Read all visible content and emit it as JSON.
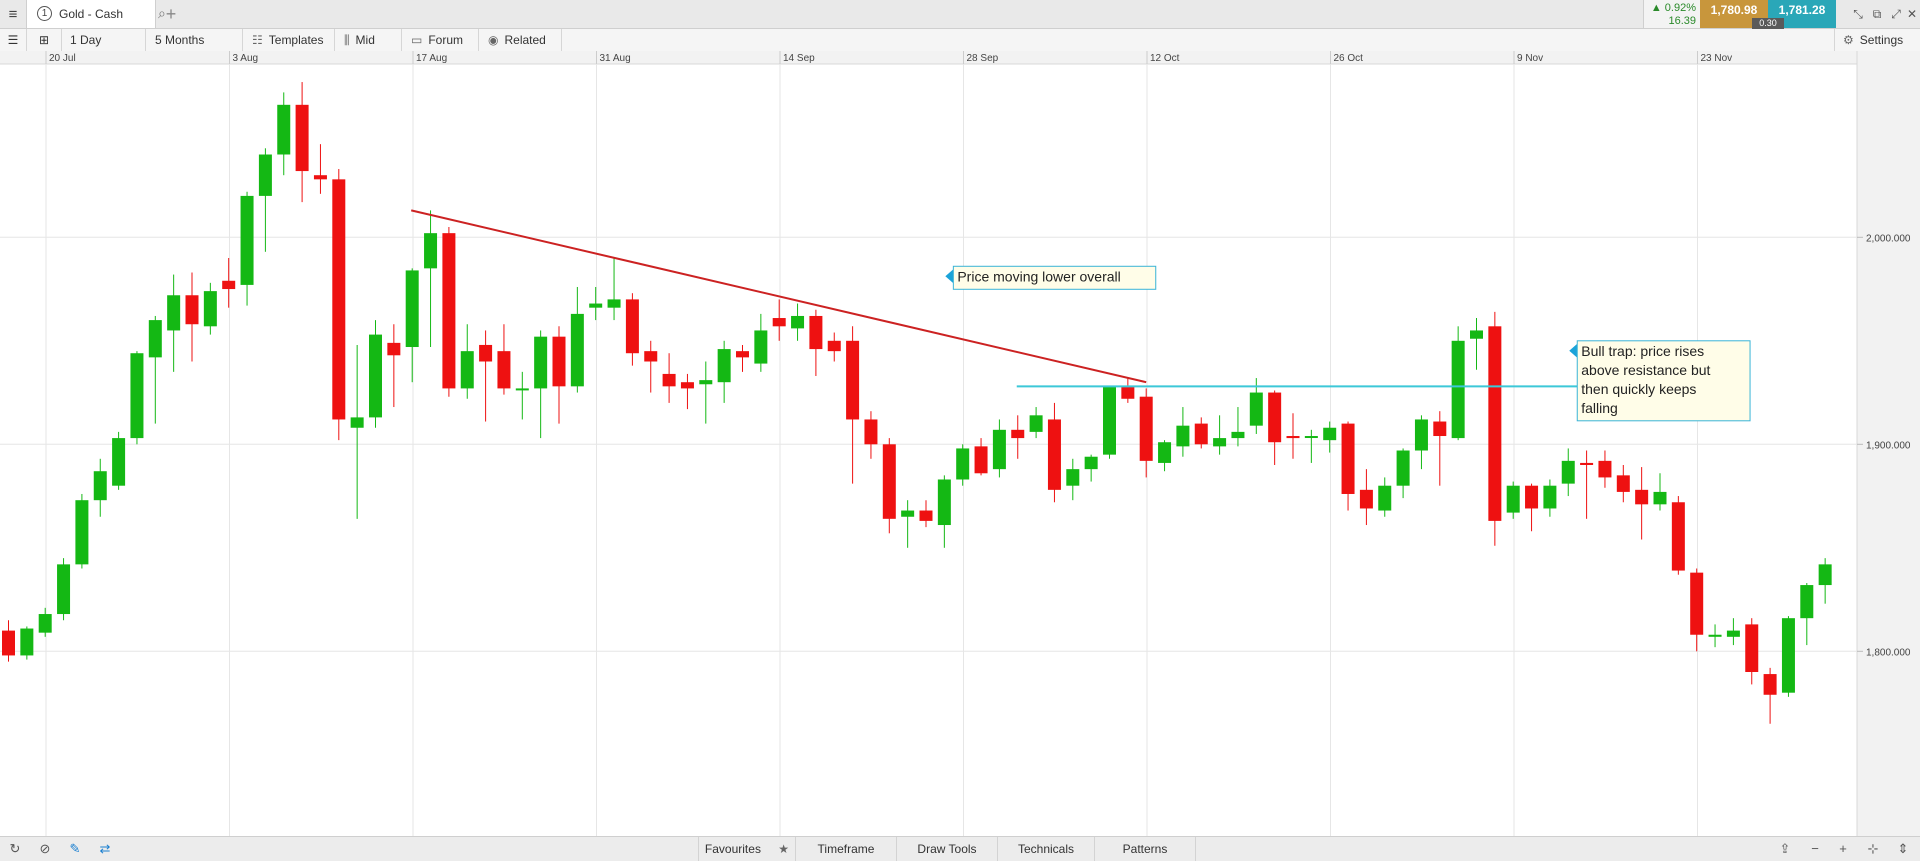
{
  "tabbar": {
    "menu_icon": "hamburger-icon",
    "tab_number": "1",
    "tab_title": "Gold - Cash",
    "search_icon": "search-icon",
    "add_tab": "+"
  },
  "quote": {
    "change_pct": "▲ 0.92%",
    "change_pts": "16.39",
    "sell_price": "1,780.98",
    "buy_price": "1,781.28",
    "spread": "0.30",
    "sell_color": "#c8963c",
    "buy_color": "#2aa7b8"
  },
  "window_controls": {
    "minimize": "⤡",
    "popout": "⧉",
    "maximize": "⤢",
    "close": "✕"
  },
  "toolbar": {
    "interval": "1 Day",
    "range": "5 Months",
    "templates": "Templates",
    "price_type": "Mid",
    "forum": "Forum",
    "related": "Related",
    "settings": "Settings"
  },
  "bottombar": {
    "favourites": "Favourites",
    "timeframe": "Timeframe",
    "draw_tools": "Draw Tools",
    "technicals": "Technicals",
    "patterns": "Patterns"
  },
  "chart_data": {
    "type": "candlestick",
    "instrument": "Gold - Cash",
    "interval": "1 Day",
    "x_tick_labels": [
      "20 Jul",
      "3 Aug",
      "17 Aug",
      "31 Aug",
      "14 Sep",
      "28 Sep",
      "12 Oct",
      "26 Oct",
      "9 Nov",
      "23 Nov"
    ],
    "y_tick_labels": [
      "2,000.000",
      "1,900.000",
      "1,800.000"
    ],
    "y_ticks": [
      2000,
      1900,
      1800
    ],
    "ylim": [
      1700,
      2090
    ],
    "grid": true,
    "up_color": "#14b814",
    "down_color": "#ee1111",
    "candles": [
      {
        "o": 1810,
        "h": 1815,
        "l": 1795,
        "c": 1798
      },
      {
        "o": 1798,
        "h": 1812,
        "l": 1796,
        "c": 1811
      },
      {
        "o": 1809,
        "h": 1821,
        "l": 1807,
        "c": 1818
      },
      {
        "o": 1818,
        "h": 1845,
        "l": 1815,
        "c": 1842
      },
      {
        "o": 1842,
        "h": 1876,
        "l": 1840,
        "c": 1873
      },
      {
        "o": 1873,
        "h": 1893,
        "l": 1865,
        "c": 1887
      },
      {
        "o": 1880,
        "h": 1906,
        "l": 1878,
        "c": 1903
      },
      {
        "o": 1903,
        "h": 1945,
        "l": 1900,
        "c": 1944
      },
      {
        "o": 1942,
        "h": 1962,
        "l": 1910,
        "c": 1960
      },
      {
        "o": 1955,
        "h": 1982,
        "l": 1935,
        "c": 1972
      },
      {
        "o": 1972,
        "h": 1983,
        "l": 1940,
        "c": 1958
      },
      {
        "o": 1957,
        "h": 1978,
        "l": 1953,
        "c": 1974
      },
      {
        "o": 1979,
        "h": 1990,
        "l": 1966,
        "c": 1975
      },
      {
        "o": 1977,
        "h": 2022,
        "l": 1967,
        "c": 2020
      },
      {
        "o": 2020,
        "h": 2043,
        "l": 1993,
        "c": 2040
      },
      {
        "o": 2040,
        "h": 2070,
        "l": 2030,
        "c": 2064
      },
      {
        "o": 2064,
        "h": 2075,
        "l": 2017,
        "c": 2032
      },
      {
        "o": 2030,
        "h": 2045,
        "l": 2021,
        "c": 2028
      },
      {
        "o": 2028,
        "h": 2033,
        "l": 1902,
        "c": 1912
      },
      {
        "o": 1908,
        "h": 1948,
        "l": 1864,
        "c": 1913
      },
      {
        "o": 1913,
        "h": 1960,
        "l": 1908,
        "c": 1953
      },
      {
        "o": 1949,
        "h": 1958,
        "l": 1918,
        "c": 1943
      },
      {
        "o": 1947,
        "h": 1985,
        "l": 1930,
        "c": 1984
      },
      {
        "o": 1985,
        "h": 2013,
        "l": 1947,
        "c": 2002
      },
      {
        "o": 2002,
        "h": 2005,
        "l": 1923,
        "c": 1927
      },
      {
        "o": 1927,
        "h": 1958,
        "l": 1922,
        "c": 1945
      },
      {
        "o": 1948,
        "h": 1955,
        "l": 1911,
        "c": 1940
      },
      {
        "o": 1945,
        "h": 1958,
        "l": 1924,
        "c": 1927
      },
      {
        "o": 1927,
        "h": 1935,
        "l": 1912,
        "c": 1927
      },
      {
        "o": 1927,
        "h": 1955,
        "l": 1903,
        "c": 1952
      },
      {
        "o": 1952,
        "h": 1957,
        "l": 1910,
        "c": 1928
      },
      {
        "o": 1928,
        "h": 1976,
        "l": 1925,
        "c": 1963
      },
      {
        "o": 1966,
        "h": 1976,
        "l": 1960,
        "c": 1968
      },
      {
        "o": 1966,
        "h": 1990,
        "l": 1960,
        "c": 1970
      },
      {
        "o": 1970,
        "h": 1973,
        "l": 1938,
        "c": 1944
      },
      {
        "o": 1945,
        "h": 1950,
        "l": 1925,
        "c": 1940
      },
      {
        "o": 1934,
        "h": 1944,
        "l": 1920,
        "c": 1928
      },
      {
        "o": 1930,
        "h": 1934,
        "l": 1917,
        "c": 1927
      },
      {
        "o": 1929,
        "h": 1940,
        "l": 1910,
        "c": 1931
      },
      {
        "o": 1930,
        "h": 1950,
        "l": 1920,
        "c": 1946
      },
      {
        "o": 1945,
        "h": 1948,
        "l": 1935,
        "c": 1942
      },
      {
        "o": 1939,
        "h": 1963,
        "l": 1935,
        "c": 1955
      },
      {
        "o": 1961,
        "h": 1970,
        "l": 1950,
        "c": 1957
      },
      {
        "o": 1956,
        "h": 1968,
        "l": 1950,
        "c": 1962
      },
      {
        "o": 1962,
        "h": 1965,
        "l": 1933,
        "c": 1946
      },
      {
        "o": 1950,
        "h": 1954,
        "l": 1940,
        "c": 1945
      },
      {
        "o": 1950,
        "h": 1957,
        "l": 1881,
        "c": 1912
      },
      {
        "o": 1912,
        "h": 1916,
        "l": 1893,
        "c": 1900
      },
      {
        "o": 1900,
        "h": 1903,
        "l": 1857,
        "c": 1864
      },
      {
        "o": 1865,
        "h": 1873,
        "l": 1850,
        "c": 1868
      },
      {
        "o": 1868,
        "h": 1873,
        "l": 1860,
        "c": 1863
      },
      {
        "o": 1861,
        "h": 1885,
        "l": 1850,
        "c": 1883
      },
      {
        "o": 1883,
        "h": 1900,
        "l": 1880,
        "c": 1898
      },
      {
        "o": 1899,
        "h": 1903,
        "l": 1885,
        "c": 1886
      },
      {
        "o": 1888,
        "h": 1912,
        "l": 1884,
        "c": 1907
      },
      {
        "o": 1907,
        "h": 1914,
        "l": 1893,
        "c": 1903
      },
      {
        "o": 1906,
        "h": 1918,
        "l": 1903,
        "c": 1914
      },
      {
        "o": 1912,
        "h": 1920,
        "l": 1872,
        "c": 1878
      },
      {
        "o": 1880,
        "h": 1893,
        "l": 1873,
        "c": 1888
      },
      {
        "o": 1888,
        "h": 1895,
        "l": 1882,
        "c": 1894
      },
      {
        "o": 1895,
        "h": 1928,
        "l": 1893,
        "c": 1928
      },
      {
        "o": 1928,
        "h": 1932,
        "l": 1920,
        "c": 1922
      },
      {
        "o": 1923,
        "h": 1927,
        "l": 1884,
        "c": 1892
      },
      {
        "o": 1891,
        "h": 1902,
        "l": 1887,
        "c": 1901
      },
      {
        "o": 1899,
        "h": 1918,
        "l": 1894,
        "c": 1909
      },
      {
        "o": 1910,
        "h": 1913,
        "l": 1898,
        "c": 1900
      },
      {
        "o": 1899,
        "h": 1914,
        "l": 1895,
        "c": 1903
      },
      {
        "o": 1903,
        "h": 1918,
        "l": 1899,
        "c": 1906
      },
      {
        "o": 1909,
        "h": 1932,
        "l": 1905,
        "c": 1925
      },
      {
        "o": 1925,
        "h": 1926,
        "l": 1890,
        "c": 1901
      },
      {
        "o": 1904,
        "h": 1915,
        "l": 1893,
        "c": 1903
      },
      {
        "o": 1904,
        "h": 1907,
        "l": 1891,
        "c": 1904
      },
      {
        "o": 1902,
        "h": 1911,
        "l": 1896,
        "c": 1908
      },
      {
        "o": 1910,
        "h": 1911,
        "l": 1868,
        "c": 1876
      },
      {
        "o": 1878,
        "h": 1888,
        "l": 1861,
        "c": 1869
      },
      {
        "o": 1868,
        "h": 1884,
        "l": 1865,
        "c": 1880
      },
      {
        "o": 1880,
        "h": 1898,
        "l": 1874,
        "c": 1897
      },
      {
        "o": 1897,
        "h": 1914,
        "l": 1888,
        "c": 1912
      },
      {
        "o": 1911,
        "h": 1916,
        "l": 1880,
        "c": 1904
      },
      {
        "o": 1903,
        "h": 1957,
        "l": 1902,
        "c": 1950
      },
      {
        "o": 1951,
        "h": 1961,
        "l": 1936,
        "c": 1955
      },
      {
        "o": 1957,
        "h": 1964,
        "l": 1851,
        "c": 1863
      },
      {
        "o": 1867,
        "h": 1882,
        "l": 1864,
        "c": 1880
      },
      {
        "o": 1880,
        "h": 1881,
        "l": 1858,
        "c": 1869
      },
      {
        "o": 1869,
        "h": 1883,
        "l": 1865,
        "c": 1880
      },
      {
        "o": 1881,
        "h": 1898,
        "l": 1875,
        "c": 1892
      },
      {
        "o": 1891,
        "h": 1897,
        "l": 1864,
        "c": 1890
      },
      {
        "o": 1892,
        "h": 1897,
        "l": 1879,
        "c": 1884
      },
      {
        "o": 1885,
        "h": 1890,
        "l": 1872,
        "c": 1877
      },
      {
        "o": 1878,
        "h": 1889,
        "l": 1854,
        "c": 1871
      },
      {
        "o": 1871,
        "h": 1886,
        "l": 1868,
        "c": 1877
      },
      {
        "o": 1872,
        "h": 1875,
        "l": 1837,
        "c": 1839
      },
      {
        "o": 1838,
        "h": 1840,
        "l": 1800,
        "c": 1808
      },
      {
        "o": 1807,
        "h": 1813,
        "l": 1802,
        "c": 1808
      },
      {
        "o": 1807,
        "h": 1816,
        "l": 1803,
        "c": 1810
      },
      {
        "o": 1813,
        "h": 1816,
        "l": 1784,
        "c": 1790
      },
      {
        "o": 1789,
        "h": 1792,
        "l": 1765,
        "c": 1779
      },
      {
        "o": 1780,
        "h": 1817,
        "l": 1778,
        "c": 1816
      },
      {
        "o": 1816,
        "h": 1833,
        "l": 1803,
        "c": 1832
      },
      {
        "o": 1832,
        "h": 1845,
        "l": 1823,
        "c": 1842
      }
    ],
    "annotations": [
      {
        "type": "trendline",
        "color": "#cc2222",
        "from": {
          "candle": 22,
          "price": 2013
        },
        "to": {
          "candle": 62,
          "price": 1930
        }
      },
      {
        "type": "horizontal_line",
        "color": "#3cc8d8",
        "price": 1928,
        "from_candle": 55,
        "to_candle": 86
      },
      {
        "type": "callout",
        "text": "Price moving lower overall",
        "candle": 51,
        "price": 1986
      },
      {
        "type": "callout",
        "text": "Bull trap: price rises above resistance but then quickly keeps falling",
        "candle": 85,
        "price": 1950
      }
    ]
  }
}
